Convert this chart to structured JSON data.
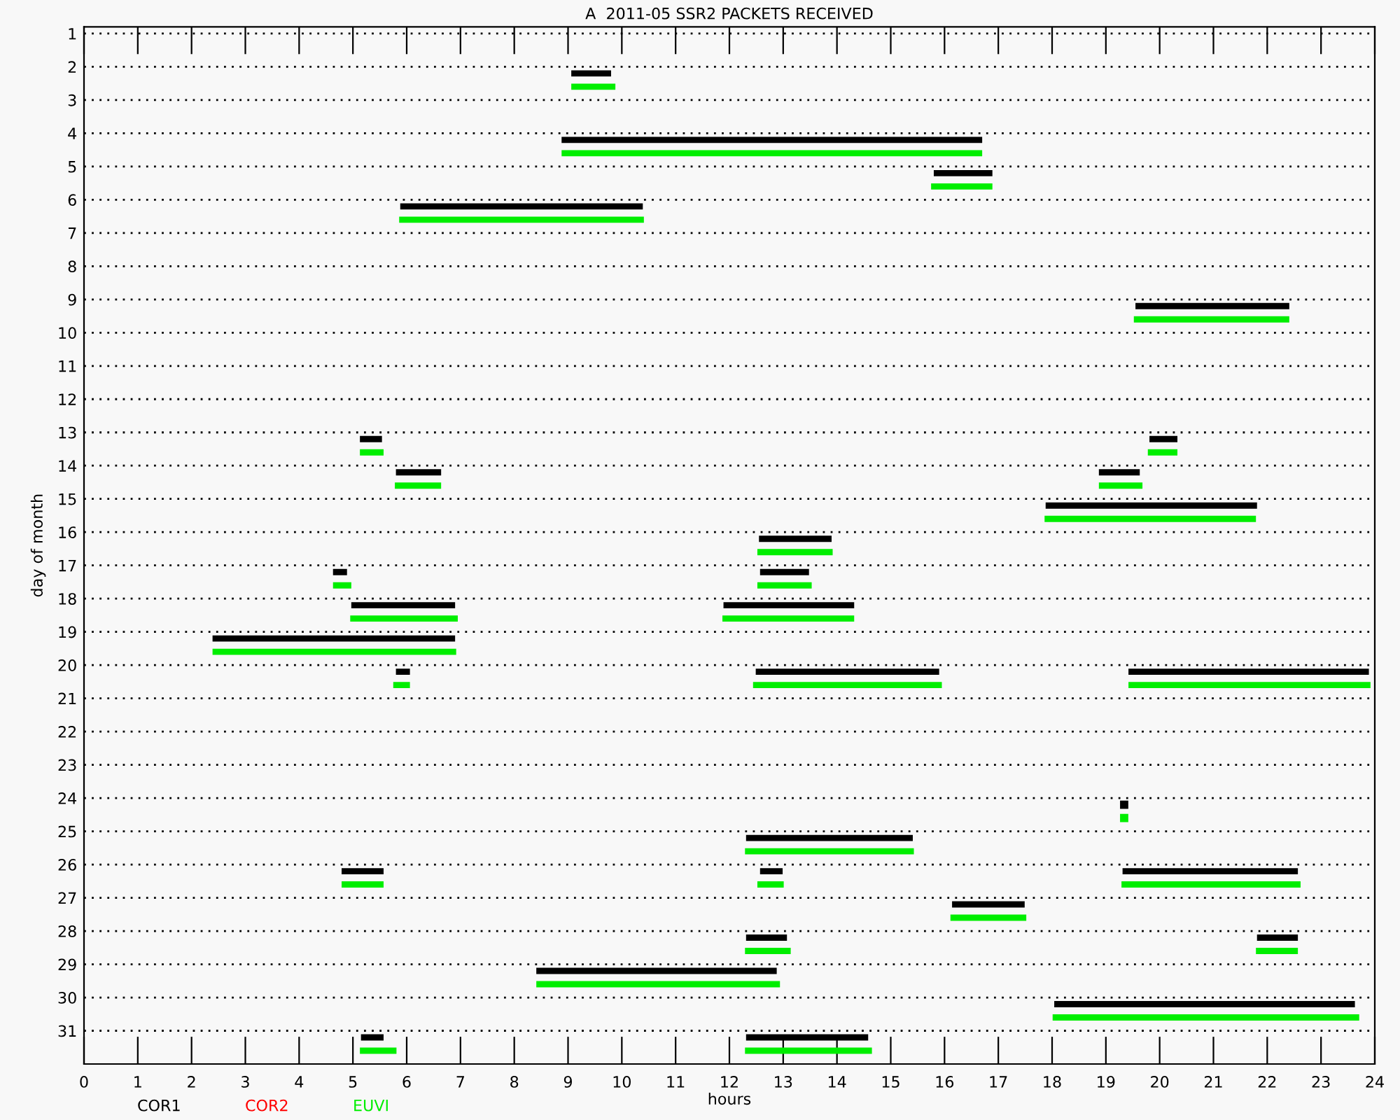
{
  "chart_data": {
    "type": "line",
    "title": "A  2011-05 SSR2 PACKETS RECEIVED",
    "xlabel": "hours",
    "ylabel": "day of month",
    "xlim": [
      0,
      24
    ],
    "xticks": [
      0,
      1,
      2,
      3,
      4,
      5,
      6,
      7,
      8,
      9,
      10,
      11,
      12,
      13,
      14,
      15,
      16,
      17,
      18,
      19,
      20,
      21,
      22,
      23,
      24
    ],
    "ylim": [
      32,
      0.8
    ],
    "yticks": [
      1,
      2,
      3,
      4,
      5,
      6,
      7,
      8,
      9,
      10,
      11,
      12,
      13,
      14,
      15,
      16,
      17,
      18,
      19,
      20,
      21,
      22,
      23,
      24,
      25,
      26,
      27,
      28,
      29,
      30,
      31
    ],
    "grid": "y",
    "legend": "bottom",
    "marker": "none",
    "series": [
      {
        "name": "COR1",
        "color": "#000000",
        "x": [
          9.06,
          9.8,
          null,
          8.88,
          16.7,
          null,
          15.8,
          16.89,
          null,
          5.88,
          10.39,
          null,
          19.55,
          22.41,
          null,
          5.13,
          5.54,
          null,
          19.81,
          20.33,
          null,
          5.8,
          6.64,
          null,
          18.87,
          19.63,
          null,
          17.88,
          21.81,
          null,
          12.55,
          13.9,
          null,
          4.63,
          4.89,
          null,
          12.57,
          13.48,
          null,
          4.97,
          6.9,
          null,
          11.89,
          14.32,
          null,
          2.39,
          6.9,
          null,
          5.8,
          6.06,
          null,
          12.49,
          15.9,
          null,
          19.42,
          23.89,
          null,
          12.31,
          15.41,
          null,
          4.79,
          5.57,
          null,
          12.57,
          12.99,
          null,
          19.31,
          22.57,
          null,
          16.14,
          17.49,
          null,
          12.31,
          13.07,
          null,
          21.81,
          22.57,
          null,
          8.41,
          12.88,
          null,
          18.04,
          23.63,
          null,
          5.15,
          5.57,
          null,
          12.31,
          14.58
        ],
        "values": [
          2.2,
          2.2,
          null,
          4.2,
          4.2,
          null,
          5.2,
          5.2,
          null,
          6.2,
          6.2,
          null,
          9.2,
          9.2,
          null,
          13.2,
          13.2,
          null,
          13.2,
          13.2,
          null,
          14.2,
          14.2,
          null,
          14.2,
          14.2,
          null,
          15.2,
          15.2,
          null,
          16.2,
          16.2,
          null,
          17.2,
          17.2,
          null,
          17.2,
          17.2,
          null,
          18.2,
          18.2,
          null,
          18.2,
          18.2,
          null,
          19.2,
          19.2,
          null,
          20.2,
          20.2,
          null,
          20.2,
          20.2,
          null,
          20.2,
          20.2,
          null,
          25.2,
          25.2,
          null,
          26.2,
          26.2,
          null,
          26.2,
          26.2,
          null,
          26.2,
          26.2,
          null,
          27.2,
          27.2,
          null,
          28.2,
          28.2,
          null,
          28.2,
          28.2,
          null,
          29.2,
          29.2,
          null,
          30.2,
          30.2,
          null,
          31.2,
          31.2,
          null,
          31.2,
          31.2
        ]
      },
      {
        "name": "COR2",
        "color": "#ff0000"
      },
      {
        "name": "EUVI",
        "color": "#00ee00",
        "x": [
          9.06,
          9.88,
          null,
          8.88,
          16.7,
          null,
          15.75,
          16.89,
          null,
          5.86,
          10.41,
          null,
          19.52,
          22.41,
          null,
          5.13,
          5.57,
          null,
          19.78,
          20.33,
          null,
          5.78,
          6.64,
          null,
          18.87,
          19.68,
          null,
          17.86,
          21.79,
          null,
          12.52,
          13.92,
          null,
          4.63,
          4.97,
          null,
          12.52,
          13.53,
          null,
          4.95,
          6.95,
          null,
          11.87,
          14.32,
          null,
          2.39,
          6.92,
          null,
          5.75,
          6.06,
          null,
          12.44,
          15.95,
          null,
          19.42,
          23.92,
          null,
          12.29,
          15.43,
          null,
          4.79,
          5.57,
          null,
          12.52,
          13.01,
          null,
          19.29,
          22.62,
          null,
          16.11,
          17.52,
          null,
          12.29,
          13.14,
          null,
          21.79,
          22.57,
          null,
          8.41,
          12.94,
          null,
          18.01,
          23.71,
          null,
          5.13,
          5.81,
          null,
          12.29,
          14.65
        ],
        "values": [
          2.6,
          2.6,
          null,
          4.6,
          4.6,
          null,
          5.6,
          5.6,
          null,
          6.6,
          6.6,
          null,
          9.6,
          9.6,
          null,
          13.6,
          13.6,
          null,
          13.6,
          13.6,
          null,
          14.6,
          14.6,
          null,
          14.6,
          14.6,
          null,
          15.6,
          15.6,
          null,
          16.6,
          16.6,
          null,
          17.6,
          17.6,
          null,
          17.6,
          17.6,
          null,
          18.6,
          18.6,
          null,
          18.6,
          18.6,
          null,
          19.6,
          19.6,
          null,
          20.6,
          20.6,
          null,
          20.6,
          20.6,
          null,
          20.6,
          20.6,
          null,
          25.6,
          25.6,
          null,
          26.6,
          26.6,
          null,
          26.6,
          26.6,
          null,
          26.6,
          26.6,
          null,
          27.6,
          27.6,
          null,
          28.6,
          28.6,
          null,
          28.6,
          28.6,
          null,
          29.6,
          29.6,
          null,
          30.6,
          30.6,
          null,
          31.6,
          31.6,
          null,
          31.6,
          31.6
        ]
      },
      {
        "type": "scatter",
        "marker": "square",
        "color": "#000000",
        "x": [
          19.34
        ],
        "values": [
          24.2
        ]
      },
      {
        "type": "scatter",
        "marker": "square",
        "color": "#00ee00",
        "x": [
          19.34
        ],
        "values": [
          24.6
        ]
      }
    ]
  }
}
